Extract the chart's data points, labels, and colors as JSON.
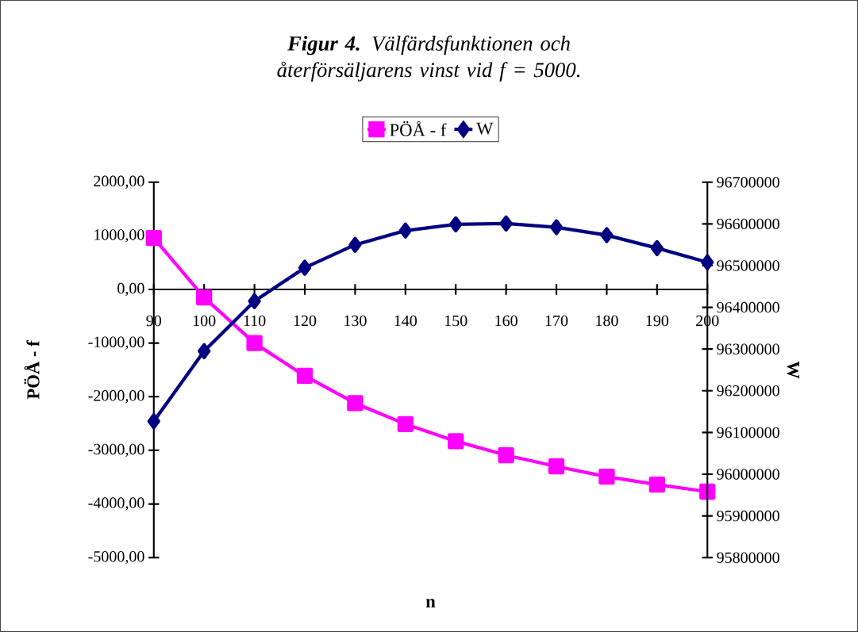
{
  "chart_data": {
    "type": "line",
    "title": "**Figur 4.**  Välfärdsfunktionen och återförsäljarens vinst vid f = 5000.",
    "xlabel": "n",
    "ylabel": "PÖÅ - f",
    "y2label": "W",
    "categories": [
      "90",
      "100",
      "110",
      "120",
      "130",
      "140",
      "150",
      "160",
      "170",
      "180",
      "190",
      "200"
    ],
    "series": [
      {
        "name": "PÖÅ - f",
        "color": "#ff00ff",
        "marker": "square",
        "values": [
          960,
          -150,
          -1000,
          -1610,
          -2120,
          -2510,
          -2830,
          -3090,
          -3300,
          -3490,
          -3640,
          -3770
        ]
      },
      {
        "name": "W",
        "color": "#000080",
        "marker": "diamond",
        "axis": "y2",
        "values": [
          96127000,
          96295000,
          96415000,
          96495000,
          96550000,
          96584000,
          96599000,
          96601000,
          96592000,
          96573000,
          96542000,
          96508000
        ]
      }
    ],
    "ylim": [
      -5000,
      2000
    ],
    "yticks": [
      {
        "value": -5000,
        "label": "-5000,00"
      },
      {
        "value": -4000,
        "label": "-4000,00"
      },
      {
        "value": -3000,
        "label": "-3000,00"
      },
      {
        "value": -2000,
        "label": "-2000,00"
      },
      {
        "value": -1000,
        "label": "-1000,00"
      },
      {
        "value": 0,
        "label": "0,00"
      },
      {
        "value": 1000,
        "label": "1000,00"
      },
      {
        "value": 2000,
        "label": "2000,00"
      }
    ],
    "y2lim": [
      95800000,
      96700000
    ],
    "y2ticks": [
      95800000,
      95900000,
      96000000,
      96100000,
      96200000,
      96300000,
      96400000,
      96500000,
      96600000,
      96700000
    ],
    "legend": "top"
  }
}
